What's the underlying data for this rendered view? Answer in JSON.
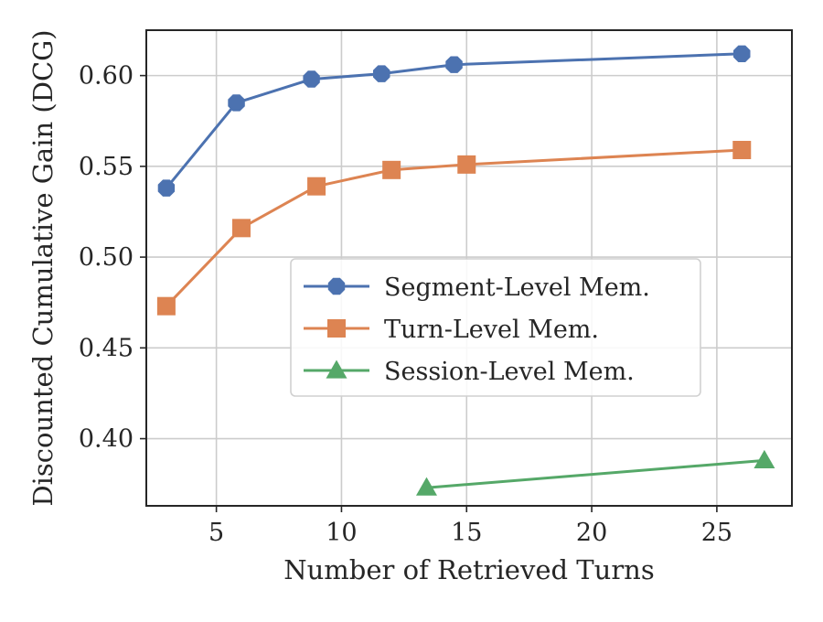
{
  "chart_data": {
    "type": "line",
    "title": "",
    "xlabel": "Number of Retrieved Turns",
    "ylabel": "Discounted Cumulative Gain (DCG)",
    "xlim": [
      2.2,
      28.0
    ],
    "ylim": [
      0.363,
      0.625
    ],
    "xticks": [
      5,
      10,
      15,
      20,
      25
    ],
    "yticks": [
      0.4,
      0.45,
      0.5,
      0.55,
      0.6
    ],
    "xtick_labels": [
      "5",
      "10",
      "15",
      "20",
      "25"
    ],
    "ytick_labels": [
      "0.40",
      "0.45",
      "0.50",
      "0.55",
      "0.60"
    ],
    "grid": true,
    "legend_position": "center-right",
    "series": [
      {
        "name": "Segment-Level Mem.",
        "color": "#4c72b0",
        "marker": "octagon",
        "x": [
          3.0,
          5.8,
          8.8,
          11.6,
          14.5,
          26.0
        ],
        "y": [
          0.538,
          0.585,
          0.598,
          0.601,
          0.606,
          0.612
        ]
      },
      {
        "name": "Turn-Level Mem.",
        "color": "#dd8452",
        "marker": "square",
        "x": [
          3.0,
          6.0,
          9.0,
          12.0,
          15.0,
          26.0
        ],
        "y": [
          0.473,
          0.516,
          0.539,
          0.548,
          0.551,
          0.559
        ]
      },
      {
        "name": "Session-Level Mem.",
        "color": "#55a868",
        "marker": "triangle",
        "x": [
          13.4,
          26.9
        ],
        "y": [
          0.373,
          0.388
        ]
      }
    ]
  }
}
